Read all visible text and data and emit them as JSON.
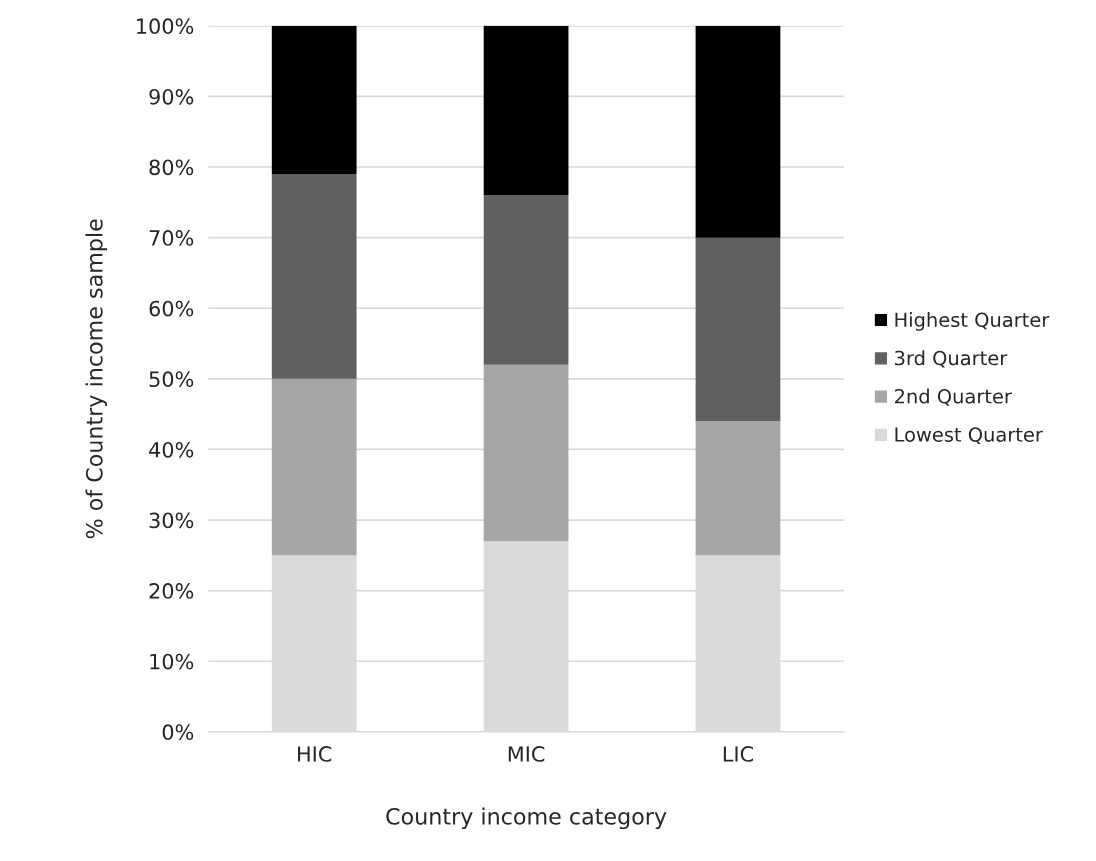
{
  "chart_data": {
    "type": "bar",
    "stacked": true,
    "xlabel": "Country income category",
    "ylabel": "% of Country income sample",
    "categories": [
      "HIC",
      "MIC",
      "LIC"
    ],
    "series": [
      {
        "name": "Lowest Quarter",
        "color": "#d9d9d9",
        "values": [
          25,
          27,
          25
        ]
      },
      {
        "name": "2nd Quarter",
        "color": "#a6a6a6",
        "values": [
          25,
          25,
          19
        ]
      },
      {
        "name": "3rd Quarter",
        "color": "#606060",
        "values": [
          29,
          24,
          26
        ]
      },
      {
        "name": "Highest Quarter",
        "color": "#000000",
        "values": [
          21,
          24,
          30
        ]
      }
    ],
    "ylim": [
      0,
      100
    ],
    "yticks": [
      {
        "value": 0,
        "label": "0%"
      },
      {
        "value": 10,
        "label": "10%"
      },
      {
        "value": 20,
        "label": "20%"
      },
      {
        "value": 30,
        "label": "30%"
      },
      {
        "value": 40,
        "label": "40%"
      },
      {
        "value": 50,
        "label": "50%"
      },
      {
        "value": 60,
        "label": "60%"
      },
      {
        "value": 70,
        "label": "70%"
      },
      {
        "value": 80,
        "label": "80%"
      },
      {
        "value": 90,
        "label": "90%"
      },
      {
        "value": 100,
        "label": "100%"
      }
    ],
    "grid": "y",
    "legend": "right"
  }
}
